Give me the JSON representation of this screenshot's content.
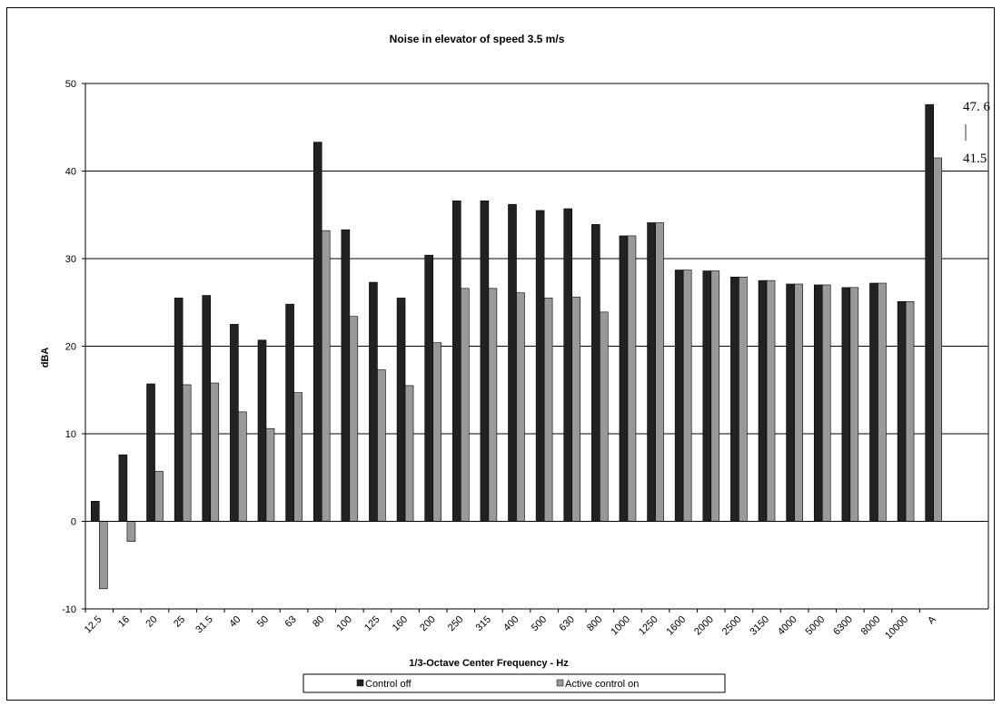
{
  "chart_data": {
    "type": "bar",
    "title": "Noise in elevator of speed 3.5 m/s",
    "xlabel": "1/3-Octave Center Frequency - Hz",
    "ylabel": "dBA",
    "ylim": [
      -10,
      50
    ],
    "yticks": [
      -10,
      0,
      10,
      20,
      30,
      40,
      50
    ],
    "grid": true,
    "legend_position": "bottom",
    "categories": [
      "12.5",
      "16",
      "20",
      "25",
      "31.5",
      "40",
      "50",
      "63",
      "80",
      "100",
      "125",
      "160",
      "200",
      "250",
      "315",
      "400",
      "500",
      "630",
      "800",
      "1000",
      "1250",
      "1600",
      "2000",
      "2500",
      "3150",
      "4000",
      "5000",
      "6300",
      "8000",
      "10000",
      "A"
    ],
    "series": [
      {
        "name": "Control off",
        "color": "#222222",
        "values": [
          2.3,
          7.6,
          15.7,
          25.5,
          25.8,
          22.5,
          20.7,
          24.8,
          43.3,
          33.3,
          27.3,
          25.5,
          30.4,
          36.6,
          36.6,
          36.2,
          35.5,
          35.7,
          33.9,
          32.6,
          34.1,
          28.7,
          28.6,
          27.9,
          27.5,
          27.1,
          27.0,
          26.7,
          27.2,
          25.1,
          47.6
        ]
      },
      {
        "name": "Active control on",
        "color": "#999999",
        "values": [
          -7.7,
          -2.3,
          5.7,
          15.6,
          15.8,
          12.5,
          10.6,
          14.7,
          33.2,
          23.4,
          17.3,
          15.5,
          20.4,
          26.6,
          26.6,
          26.1,
          25.5,
          25.6,
          23.9,
          32.6,
          34.1,
          28.7,
          28.6,
          27.9,
          27.5,
          27.1,
          27.0,
          26.7,
          27.2,
          25.1,
          41.5
        ]
      }
    ],
    "annotations": [
      "47. 6",
      "41.5"
    ]
  }
}
